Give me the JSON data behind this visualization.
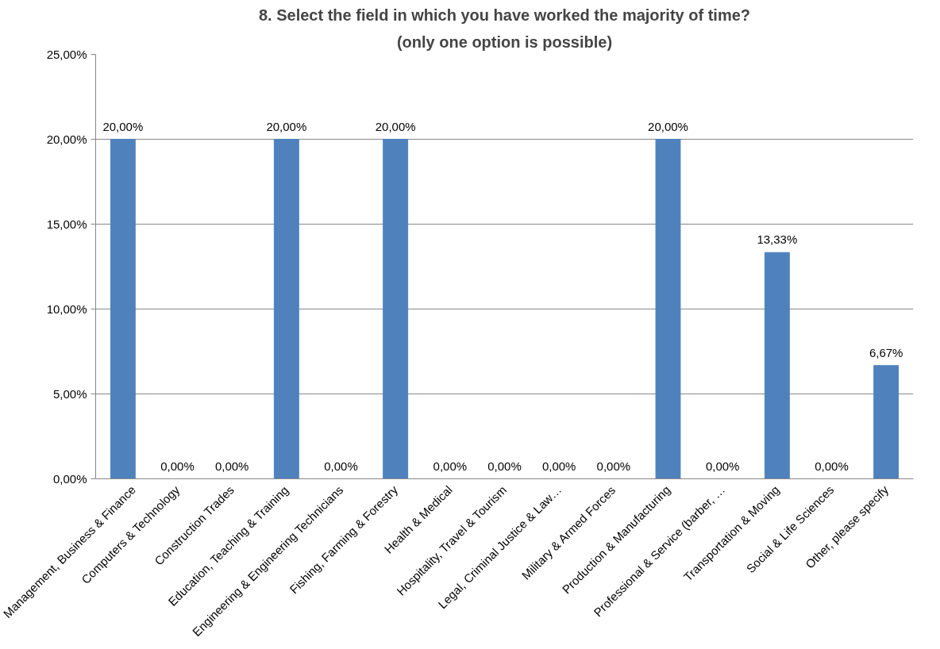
{
  "chart_data": {
    "type": "bar",
    "title": "8. Select the field in which you have worked the majority of time?",
    "subtitle": "(only one option is possible)",
    "categories": [
      "Management, Business & Finance",
      "Computers & Technology",
      "Construction Trades",
      "Education, Teaching & Training",
      "Engineering & Engineering Technicians",
      "Fishing, Farming & Forestry",
      "Health & Medical",
      "Hospitality, Travel & Tourism",
      "Legal, Criminal Justice & Law…",
      "Military & Armed Forces",
      "Production & Manufacturing",
      "Professional & Service (barber, …",
      "Transportation & Moving",
      "Social & Life Sciences",
      "Other, please specify"
    ],
    "values": [
      20,
      0,
      0,
      20,
      0,
      20,
      0,
      0,
      0,
      0,
      20,
      0,
      13.33,
      0,
      6.67
    ],
    "value_labels": [
      "20,00%",
      "0,00%",
      "0,00%",
      "20,00%",
      "0,00%",
      "20,00%",
      "0,00%",
      "0,00%",
      "0,00%",
      "0,00%",
      "20,00%",
      "0,00%",
      "13,33%",
      "0,00%",
      "6,67%"
    ],
    "color": "#4f81bd",
    "ylim": [
      0,
      25
    ],
    "yticks": [
      {
        "value": 0,
        "label": "0,00%"
      },
      {
        "value": 5,
        "label": "5,00%"
      },
      {
        "value": 10,
        "label": "10,00%"
      },
      {
        "value": 15,
        "label": "15,00%"
      },
      {
        "value": 20,
        "label": "20,00%"
      },
      {
        "value": 25,
        "label": "25,00%"
      }
    ],
    "grid": "y"
  }
}
